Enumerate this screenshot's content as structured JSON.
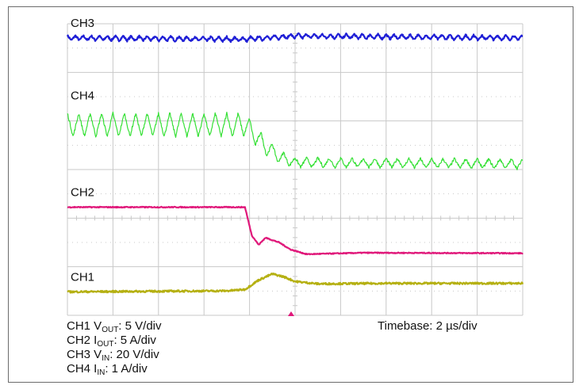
{
  "chart_data": {
    "type": "line",
    "title": "",
    "xlabel": "",
    "ylabel": "",
    "grid": true,
    "grid_divisions": {
      "x": 10,
      "y": 6
    },
    "x_unit": "µs",
    "xlim": [
      -10,
      10
    ],
    "trigger_time": 0,
    "channel_labels": [
      "CH3",
      "CH4",
      "CH2",
      "CH1"
    ],
    "series": [
      {
        "name": "CH3",
        "color": "#1f1fd6",
        "baseline": 3.3,
        "ripple_amp": 0.05,
        "ripple_period": 0.35,
        "noise": 0.02,
        "x": [
          -10,
          -2.2,
          0,
          10
        ],
        "y": [
          3.3,
          3.27,
          3.34,
          3.3
        ]
      },
      {
        "name": "CH4",
        "color": "#35e035",
        "baseline": 1.4,
        "ripple_period": 0.5,
        "noise": 0.03,
        "x": [
          -10,
          -2.2,
          -1.8,
          -1.2,
          -0.6,
          0,
          10
        ],
        "y": [
          1.45,
          1.45,
          1.25,
          0.95,
          0.75,
          0.65,
          0.62
        ],
        "ripple_amp_points": [
          [
            -10,
            0.25
          ],
          [
            -2.2,
            0.25
          ],
          [
            0,
            0.1
          ],
          [
            10,
            0.1
          ]
        ]
      },
      {
        "name": "CH2",
        "color": "#e0187a",
        "baseline": -0.3,
        "noise": 0.01,
        "x": [
          -10,
          -2.2,
          -1.9,
          -1.6,
          -1.3,
          -0.7,
          -0.2,
          0.5,
          3,
          10
        ],
        "y": [
          -0.3,
          -0.3,
          -0.9,
          -1.1,
          -0.95,
          -1.05,
          -1.2,
          -1.3,
          -1.27,
          -1.28
        ]
      },
      {
        "name": "CH1",
        "color": "#b5b012",
        "baseline": -2.1,
        "noise": 0.02,
        "x": [
          -10,
          -3,
          -2.2,
          -1.6,
          -1.0,
          -0.5,
          0,
          1,
          4,
          10
        ],
        "y": [
          -2.1,
          -2.08,
          -2.05,
          -1.85,
          -1.72,
          -1.78,
          -1.88,
          -1.93,
          -1.92,
          -1.92
        ]
      }
    ]
  },
  "info": {
    "ch1": {
      "prefix": "CH1 V",
      "sub": "OUT",
      "suffix": ": 5 V/div"
    },
    "ch2": {
      "prefix": "CH2 I",
      "sub": "OUT",
      "suffix": ": 5 A/div"
    },
    "ch3": {
      "prefix": "CH3 V",
      "sub": "IN",
      "suffix": ": 20 V/div"
    },
    "ch4": {
      "prefix": "CH4 I",
      "sub": "IN",
      "suffix": ": 1 A/div"
    },
    "timebase": "Timebase: 2 µs/div"
  },
  "colors": {
    "grid": "#c8c8c8",
    "trigger_marker": "#e0187a"
  }
}
